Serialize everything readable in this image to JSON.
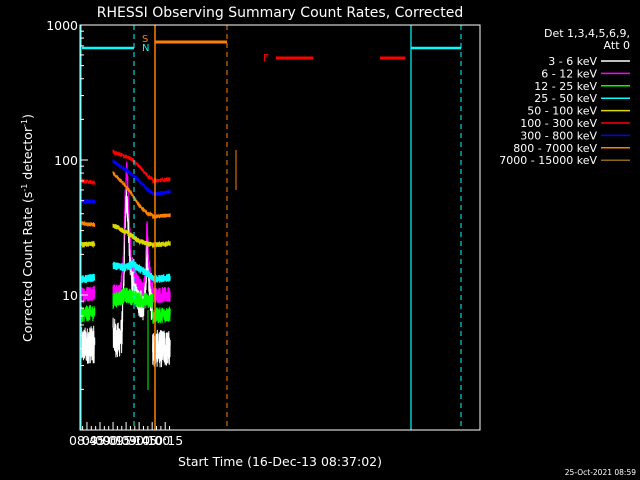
{
  "chart_data": {
    "type": "line",
    "title": "RHESSI Observing Summary Count Rates, Corrected",
    "xlabel": "Start Time (16-Dec-13 08:37:02)",
    "ylabel_main": "Corrected Count Rate (s",
    "ylabel_sup1": "-1",
    "ylabel_mid": " detector",
    "ylabel_sup2": "-1",
    "ylabel_end": ")",
    "x_range_min": [
      517,
      977
    ],
    "y_range": [
      1,
      1000
    ],
    "y_scale": "log",
    "x_ticks": [
      {
        "label": "08:45",
        "min": 525
      },
      {
        "label": "09:00",
        "min": 540
      },
      {
        "label": "09:15",
        "min": 555
      },
      {
        "label": "09:30",
        "min": 570
      },
      {
        "label": "09:45",
        "min": 585
      },
      {
        "label": "10:00",
        "min": 600
      },
      {
        "label": "10:15",
        "min": 615
      }
    ],
    "y_ticks": [
      {
        "label": "1000",
        "value": 1000
      },
      {
        "label": "100",
        "value": 100
      },
      {
        "label": "10",
        "value": 10
      }
    ],
    "legend_title": [
      "Det 1,3,4,5,6,9,",
      "Att 0"
    ],
    "series": [
      {
        "name": "3 - 6 keV",
        "color": "#ffffff"
      },
      {
        "name": "6 - 12 keV",
        "color": "#ff00ff"
      },
      {
        "name": "12 - 25 keV",
        "color": "#00ff00"
      },
      {
        "name": "25 - 50 keV",
        "color": "#00ffff"
      },
      {
        "name": "50 - 100 keV",
        "color": "#d9d900"
      },
      {
        "name": "100 - 300 keV",
        "color": "#ff0000"
      },
      {
        "name": "300 - 800 keV",
        "color": "#0000ff"
      },
      {
        "name": "800 - 7000 keV",
        "color": "#ff7f00"
      },
      {
        "name": "7000 - 15000 keV",
        "color": "#8b6914"
      }
    ],
    "annotations": {
      "saa_label": "S",
      "night_label": "N",
      "flare_label": "F"
    },
    "timestamp": "25-Oct-2021 08:59"
  }
}
